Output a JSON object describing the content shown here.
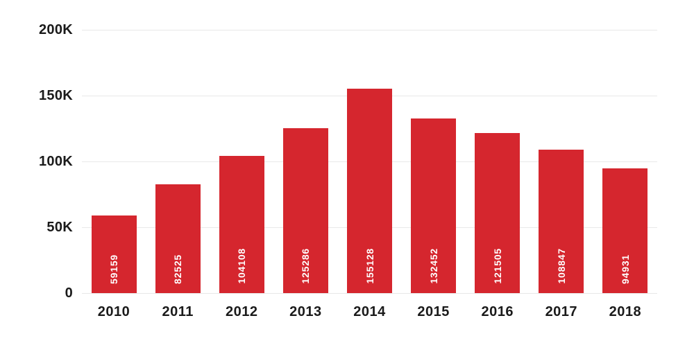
{
  "chart_data": {
    "type": "bar",
    "title": "",
    "xlabel": "",
    "ylabel": "",
    "categories": [
      "2010",
      "2011",
      "2012",
      "2013",
      "2014",
      "2015",
      "2016",
      "2017",
      "2018"
    ],
    "values": [
      59159,
      82525,
      104108,
      125286,
      155128,
      132452,
      121505,
      108847,
      94931
    ],
    "value_labels": [
      "59159",
      "82525",
      "104108",
      "125286",
      "155128",
      "132452",
      "121505",
      "108847",
      "94931"
    ],
    "ylim": [
      0,
      200000
    ],
    "y_ticks": [
      {
        "value": 0,
        "label": "0"
      },
      {
        "value": 50000,
        "label": "50K"
      },
      {
        "value": 100000,
        "label": "100K"
      },
      {
        "value": 150000,
        "label": "150K"
      },
      {
        "value": 200000,
        "label": "200K"
      }
    ],
    "grid": true,
    "legend": "none",
    "value_label_rotation": -90,
    "colors": {
      "bar": "#d5262e",
      "value_label": "#ffffff",
      "axis_text": "#1a1a1a",
      "gridline": "#e8e8e8"
    }
  }
}
